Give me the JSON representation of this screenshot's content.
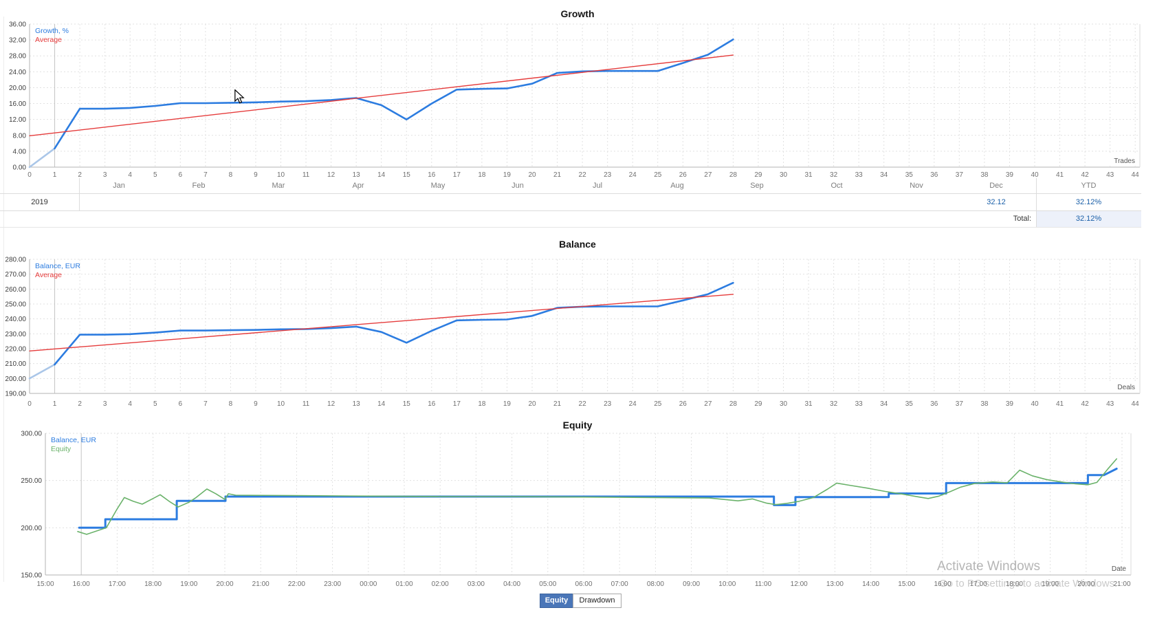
{
  "chart_data": [
    {
      "type": "line",
      "title": "Growth",
      "x_axis_corner_label": "Trades",
      "legend": [
        {
          "label": "Growth, %",
          "color": "#2c7ce0"
        },
        {
          "label": "Average",
          "color": "#e53b3b"
        }
      ],
      "xlim": [
        0,
        44
      ],
      "ylim": [
        0,
        36
      ],
      "marker_tick": 1,
      "x_ticks": [
        0,
        1,
        2,
        3,
        4,
        5,
        6,
        7,
        8,
        9,
        10,
        11,
        12,
        13,
        14,
        15,
        16,
        17,
        18,
        19,
        20,
        21,
        22,
        23,
        24,
        25,
        26,
        27,
        28,
        29,
        30,
        31,
        32,
        33,
        34,
        35,
        36,
        37,
        38,
        39,
        40,
        41,
        42,
        43,
        44
      ],
      "y_ticks": [
        "36.00",
        "32.00",
        "28.00",
        "24.00",
        "20.00",
        "16.00",
        "12.00",
        "8.00",
        "4.00",
        "0.00"
      ],
      "series": [
        {
          "name": "Growth, %",
          "color": "#2c7ce0",
          "width": 2.6,
          "initial_color": "#aac6e8",
          "values": [
            0,
            4.7,
            14.7,
            14.7,
            14.9,
            15.4,
            16.1,
            16.1,
            16.2,
            16.3,
            16.5,
            16.6,
            16.9,
            17.4,
            15.6,
            12.0,
            16.0,
            19.5,
            19.7,
            19.8,
            21.0,
            23.7,
            24.1,
            24.2,
            24.2,
            24.2,
            26.2,
            28.3,
            32.12
          ]
        },
        {
          "name": "Average",
          "color": "#e53b3b",
          "width": 1.4,
          "points": [
            [
              0,
              7.9
            ],
            [
              28,
              28.2
            ]
          ]
        }
      ]
    },
    {
      "type": "line",
      "title": "Balance",
      "x_axis_corner_label": "Deals",
      "legend": [
        {
          "label": "Balance, EUR",
          "color": "#2c7ce0"
        },
        {
          "label": "Average",
          "color": "#e53b3b"
        }
      ],
      "xlim": [
        0,
        44
      ],
      "ylim": [
        190,
        280
      ],
      "marker_tick": 1,
      "x_ticks": [
        0,
        1,
        2,
        3,
        4,
        5,
        6,
        7,
        8,
        9,
        10,
        11,
        12,
        13,
        14,
        15,
        16,
        17,
        18,
        19,
        20,
        21,
        22,
        23,
        24,
        25,
        26,
        27,
        28,
        29,
        30,
        31,
        32,
        33,
        34,
        35,
        36,
        37,
        38,
        39,
        40,
        41,
        42,
        43,
        44
      ],
      "y_ticks": [
        "280.00",
        "270.00",
        "260.00",
        "250.00",
        "240.00",
        "230.00",
        "220.00",
        "210.00",
        "200.00",
        "190.00"
      ],
      "series": [
        {
          "name": "Balance, EUR",
          "color": "#2c7ce0",
          "width": 2.6,
          "initial_color": "#aac6e8",
          "values": [
            200.0,
            209.4,
            229.4,
            229.4,
            229.8,
            230.8,
            232.2,
            232.2,
            232.4,
            232.6,
            233.0,
            233.2,
            233.8,
            234.8,
            231.2,
            224.0,
            232.0,
            239.0,
            239.4,
            239.6,
            242.0,
            247.4,
            248.2,
            248.4,
            248.4,
            248.4,
            252.4,
            256.6,
            264.2
          ]
        },
        {
          "name": "Average",
          "color": "#e53b3b",
          "width": 1.4,
          "points": [
            [
              0,
              218.5
            ],
            [
              28,
              256.5
            ]
          ]
        }
      ]
    },
    {
      "type": "line",
      "title": "Equity",
      "x_axis_corner_label": "Date",
      "legend": [
        {
          "label": "Balance, EUR",
          "color": "#2c7ce0"
        },
        {
          "label": "Equity",
          "color": "#6ab26a"
        }
      ],
      "xlim": [
        0,
        30.2
      ],
      "ylim": [
        150,
        300
      ],
      "marker_tick": 1,
      "x_ticks": [
        "15:00",
        "16:00",
        "17:00",
        "18:00",
        "19:00",
        "20:00",
        "21:00",
        "22:00",
        "23:00",
        "00:00",
        "01:00",
        "02:00",
        "03:00",
        "04:00",
        "05:00",
        "06:00",
        "07:00",
        "08:00",
        "09:00",
        "10:00",
        "11:00",
        "12:00",
        "13:00",
        "14:00",
        "15:00",
        "16:00",
        "17:00",
        "18:00",
        "19:00",
        "20:00",
        "21:00"
      ],
      "y_ticks": [
        "300.00",
        "250.00",
        "200.00",
        "150.00"
      ],
      "series": [
        {
          "name": "Balance, EUR",
          "color": "#2c7ce0",
          "width": 3,
          "points": [
            [
              0.94,
              200
            ],
            [
              1.67,
              200
            ],
            [
              1.67,
              209
            ],
            [
              3.66,
              209
            ],
            [
              3.66,
              228.5
            ],
            [
              5.02,
              228.5
            ],
            [
              5.02,
              233
            ],
            [
              20.3,
              233
            ],
            [
              20.3,
              224
            ],
            [
              20.9,
              224
            ],
            [
              20.9,
              232.5
            ],
            [
              23.5,
              232.5
            ],
            [
              23.5,
              236.3
            ],
            [
              25.1,
              236.3
            ],
            [
              25.1,
              247.3
            ],
            [
              29.05,
              247.3
            ],
            [
              29.05,
              255.8
            ],
            [
              29.5,
              255.8
            ],
            [
              29.85,
              262.5
            ]
          ]
        },
        {
          "name": "Equity",
          "color": "#6ab26a",
          "width": 1.6,
          "points": [
            [
              0.9,
              196
            ],
            [
              1.15,
              193
            ],
            [
              1.7,
              200
            ],
            [
              2.0,
              220
            ],
            [
              2.2,
              232
            ],
            [
              2.45,
              228
            ],
            [
              2.7,
              225
            ],
            [
              3.0,
              231
            ],
            [
              3.2,
              235
            ],
            [
              3.45,
              228
            ],
            [
              3.7,
              222
            ],
            [
              4.0,
              227
            ],
            [
              4.2,
              232
            ],
            [
              4.5,
              241
            ],
            [
              4.75,
              236
            ],
            [
              5.0,
              230
            ],
            [
              5.1,
              236
            ],
            [
              5.3,
              234.5
            ],
            [
              7,
              234
            ],
            [
              9,
              233.5
            ],
            [
              11,
              233
            ],
            [
              13,
              233
            ],
            [
              15,
              232.5
            ],
            [
              17,
              232
            ],
            [
              18.5,
              231.5
            ],
            [
              19.3,
              228.5
            ],
            [
              19.7,
              230.5
            ],
            [
              20.1,
              226
            ],
            [
              20.35,
              224.5
            ],
            [
              20.7,
              226
            ],
            [
              21.0,
              228
            ],
            [
              21.4,
              232
            ],
            [
              21.8,
              241
            ],
            [
              22.05,
              247.3
            ],
            [
              22.4,
              245
            ],
            [
              22.9,
              242
            ],
            [
              23.4,
              238.5
            ],
            [
              23.9,
              235.5
            ],
            [
              24.35,
              232.5
            ],
            [
              24.6,
              231
            ],
            [
              24.9,
              233.5
            ],
            [
              25.2,
              238
            ],
            [
              25.5,
              243
            ],
            [
              25.9,
              247
            ],
            [
              26.4,
              248.5
            ],
            [
              26.8,
              247.5
            ],
            [
              27.15,
              261
            ],
            [
              27.5,
              255
            ],
            [
              27.9,
              251
            ],
            [
              28.3,
              248.5
            ],
            [
              28.7,
              246.5
            ],
            [
              29.05,
              245.5
            ],
            [
              29.3,
              248
            ],
            [
              29.6,
              262
            ],
            [
              29.85,
              273
            ]
          ]
        }
      ]
    }
  ],
  "ui": {
    "table": {
      "year_label": "2019",
      "month_headers": [
        "Jan",
        "Feb",
        "Mar",
        "Apr",
        "May",
        "Jun",
        "Jul",
        "Aug",
        "Sep",
        "Oct",
        "Nov",
        "Dec"
      ],
      "ytd_header": "YTD",
      "dec_value": "32.12",
      "ytd_value": "32.12%",
      "total_label": "Total:",
      "total_ytd_value": "32.12%"
    },
    "buttons": [
      {
        "label": "Equity",
        "active": true
      },
      {
        "label": "Drawdown",
        "active": false
      }
    ],
    "watermark": {
      "line1": "Activate Windows",
      "line2": "Go to PC settings to activate Windows."
    }
  }
}
